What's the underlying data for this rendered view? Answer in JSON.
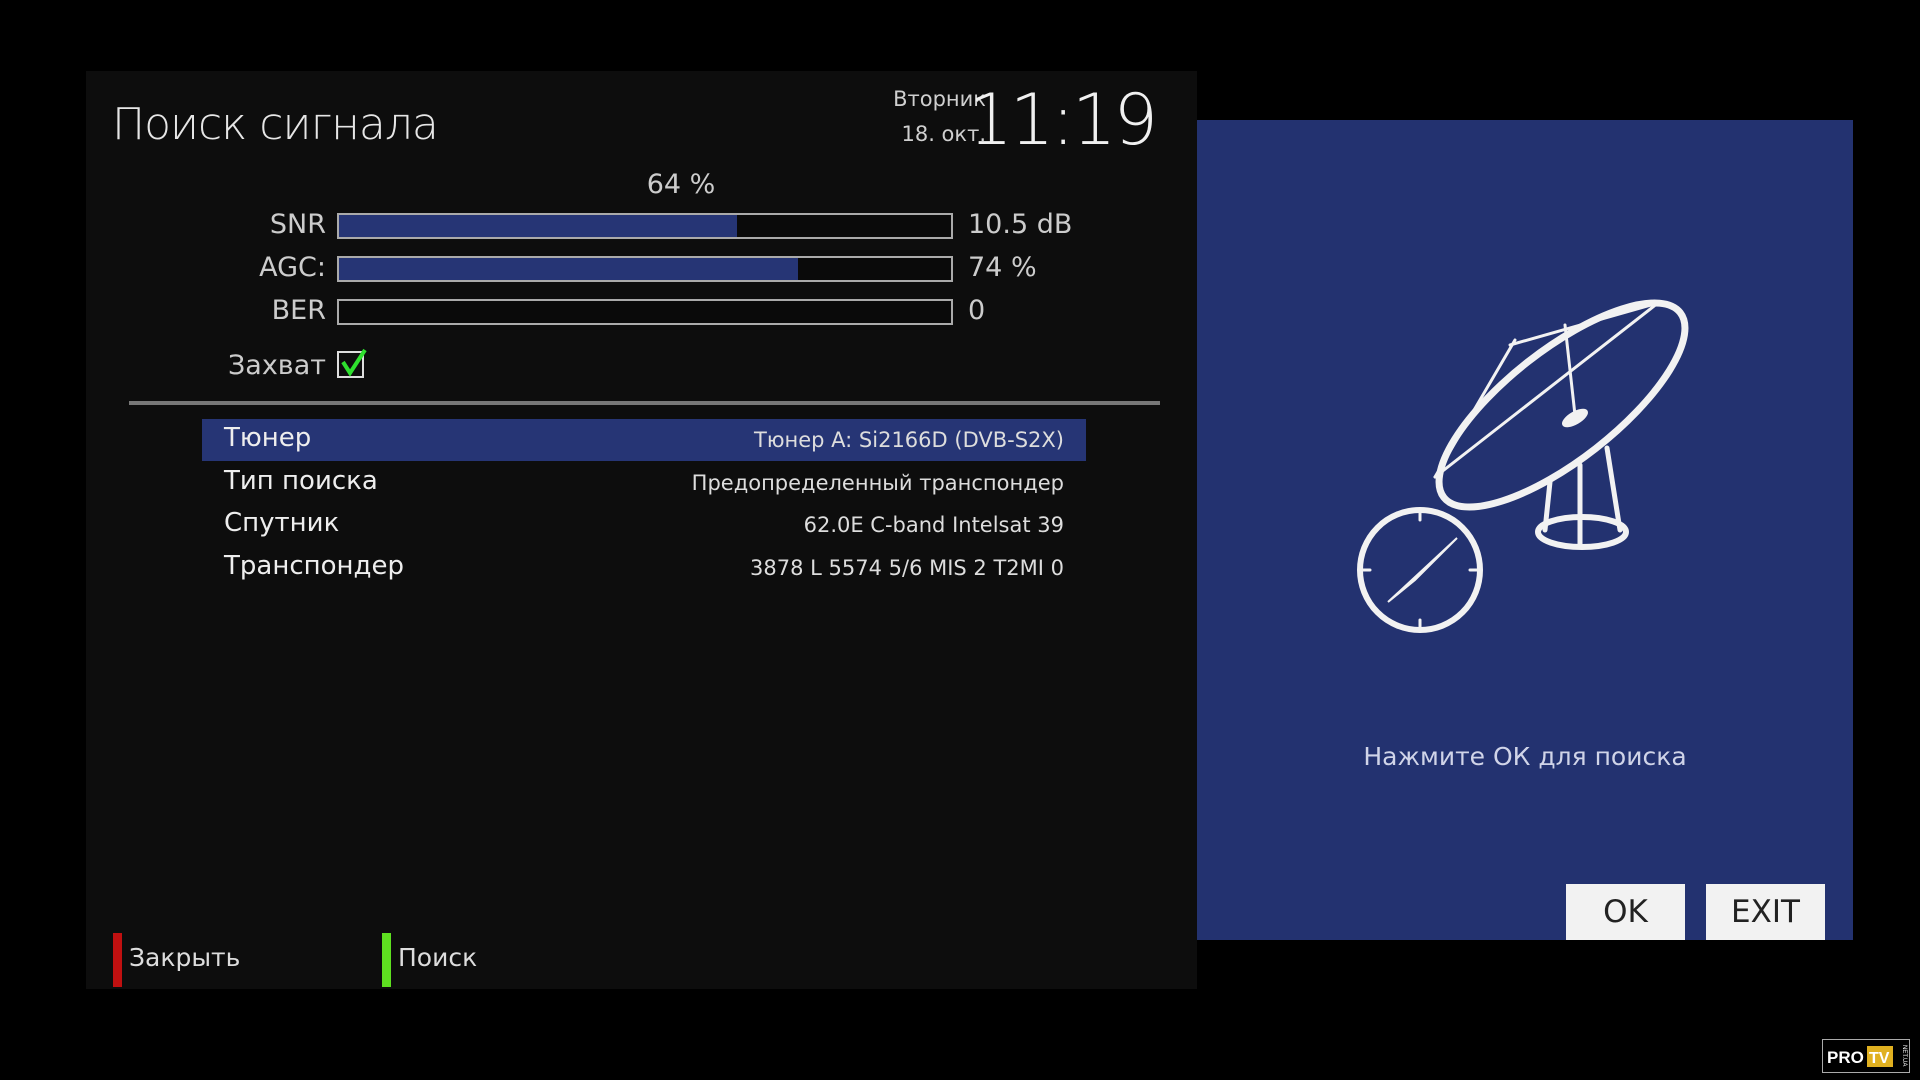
{
  "header": {
    "title": "Поиск сигнала",
    "weekday": "Вторник",
    "date": "18. окт.",
    "time": "11:19"
  },
  "signal": {
    "quality_label": "64 %",
    "meters": [
      {
        "label": "SNR",
        "value": "10.5 dB",
        "fill_percent": 65
      },
      {
        "label": "AGC:",
        "value": "74 %",
        "fill_percent": 75
      },
      {
        "label": "BER",
        "value": "0",
        "fill_percent": 0
      }
    ],
    "lock_label": "Захват",
    "locked": true
  },
  "settings": [
    {
      "label": "Тюнер",
      "value": "Тюнер A: Si2166D (DVB-S2X)",
      "selected": true
    },
    {
      "label": "Тип поиска",
      "value": "Предопределенный транспондер"
    },
    {
      "label": "Спутник",
      "value": "62.0E C-band Intelsat 39"
    },
    {
      "label": "Транспондер",
      "value": "3878 L 5574 5/6 MIS 2 T2MI 0"
    }
  ],
  "footer": {
    "red_label": "Закрыть",
    "green_label": "Поиск",
    "red_color": "#c01010",
    "green_color": "#5ee020"
  },
  "dialog": {
    "icon": "satellite-dish-compass-icon",
    "prompt": "Нажмите ОК для поиска",
    "ok_label": "OK",
    "exit_label": "EXIT",
    "background": "#233270"
  },
  "watermark": {
    "text": "PRO TV NET.UA"
  },
  "colors": {
    "accent": "#263575",
    "panel": "#0d0d0d"
  }
}
